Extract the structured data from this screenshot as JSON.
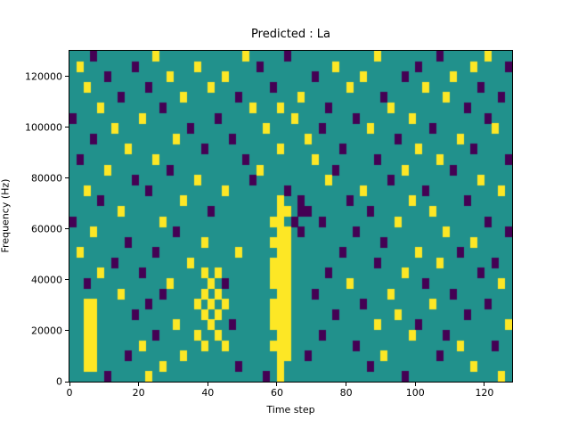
{
  "figure": {
    "background": "#ffffff"
  },
  "chart_data": {
    "type": "heatmap",
    "title": "Predicted : La",
    "xlabel": "Time step",
    "ylabel": "Frequency (Hz)",
    "xlim": [
      0,
      128
    ],
    "ylim": [
      0,
      130000
    ],
    "grid": false,
    "legend": "none",
    "x_ticks": [
      {
        "value": 0,
        "label": "0"
      },
      {
        "value": 20,
        "label": "20"
      },
      {
        "value": 40,
        "label": "40"
      },
      {
        "value": 60,
        "label": "60"
      },
      {
        "value": 80,
        "label": "80"
      },
      {
        "value": 100,
        "label": "100"
      },
      {
        "value": 120,
        "label": "120"
      }
    ],
    "y_ticks": [
      {
        "value": 0,
        "label": "0"
      },
      {
        "value": 20000,
        "label": "20000"
      },
      {
        "value": 40000,
        "label": "40000"
      },
      {
        "value": 60000,
        "label": "60000"
      },
      {
        "value": 80000,
        "label": "80000"
      },
      {
        "value": 100000,
        "label": "100000"
      },
      {
        "value": 120000,
        "label": "120000"
      }
    ],
    "colors": {
      "mid_teal": "#21918c",
      "high_yellow": "#fde725",
      "low_purple": "#440154"
    },
    "cells": {
      "cols": 64,
      "rows": 32,
      "row_order": "top-to-bottom",
      "yellow": [
        [
          12,
          0
        ],
        [
          25,
          0
        ],
        [
          44,
          0
        ],
        [
          60,
          0
        ],
        [
          1,
          1
        ],
        [
          18,
          1
        ],
        [
          38,
          1
        ],
        [
          58,
          1
        ],
        [
          14,
          2
        ],
        [
          22,
          2
        ],
        [
          42,
          2
        ],
        [
          55,
          2
        ],
        [
          2,
          3
        ],
        [
          20,
          3
        ],
        [
          40,
          3
        ],
        [
          51,
          3
        ],
        [
          16,
          4
        ],
        [
          33,
          4
        ],
        [
          54,
          4
        ],
        [
          4,
          5
        ],
        [
          26,
          5
        ],
        [
          30,
          5
        ],
        [
          46,
          5
        ],
        [
          10,
          6
        ],
        [
          32,
          6
        ],
        [
          49,
          6
        ],
        [
          6,
          7
        ],
        [
          28,
          7
        ],
        [
          43,
          7
        ],
        [
          61,
          7
        ],
        [
          15,
          8
        ],
        [
          34,
          8
        ],
        [
          56,
          8
        ],
        [
          8,
          9
        ],
        [
          30,
          9
        ],
        [
          50,
          9
        ],
        [
          12,
          10
        ],
        [
          35,
          10
        ],
        [
          53,
          10
        ],
        [
          5,
          11
        ],
        [
          27,
          11
        ],
        [
          48,
          11
        ],
        [
          18,
          12
        ],
        [
          37,
          12
        ],
        [
          59,
          12
        ],
        [
          2,
          13
        ],
        [
          22,
          13
        ],
        [
          42,
          13
        ],
        [
          62,
          13
        ],
        [
          16,
          14
        ],
        [
          30,
          14
        ],
        [
          49,
          14
        ],
        [
          7,
          15
        ],
        [
          30,
          15
        ],
        [
          31,
          15
        ],
        [
          52,
          15
        ],
        [
          13,
          16
        ],
        [
          29,
          16
        ],
        [
          30,
          16
        ],
        [
          47,
          16
        ],
        [
          3,
          17
        ],
        [
          30,
          17
        ],
        [
          31,
          17
        ],
        [
          54,
          17
        ],
        [
          19,
          18
        ],
        [
          29,
          18
        ],
        [
          30,
          18
        ],
        [
          31,
          18
        ],
        [
          58,
          18
        ],
        [
          1,
          19
        ],
        [
          24,
          19
        ],
        [
          30,
          19
        ],
        [
          31,
          19
        ],
        [
          50,
          19
        ],
        [
          17,
          20
        ],
        [
          29,
          20
        ],
        [
          30,
          20
        ],
        [
          31,
          20
        ],
        [
          53,
          20
        ],
        [
          4,
          21
        ],
        [
          19,
          21
        ],
        [
          21,
          21
        ],
        [
          29,
          21
        ],
        [
          30,
          21
        ],
        [
          31,
          21
        ],
        [
          48,
          21
        ],
        [
          14,
          22
        ],
        [
          20,
          22
        ],
        [
          29,
          22
        ],
        [
          30,
          22
        ],
        [
          31,
          22
        ],
        [
          40,
          22
        ],
        [
          62,
          22
        ],
        [
          7,
          23
        ],
        [
          19,
          23
        ],
        [
          21,
          23
        ],
        [
          30,
          23
        ],
        [
          31,
          23
        ],
        [
          46,
          23
        ],
        [
          2,
          24
        ],
        [
          3,
          24
        ],
        [
          18,
          24
        ],
        [
          20,
          24
        ],
        [
          22,
          24
        ],
        [
          29,
          24
        ],
        [
          30,
          24
        ],
        [
          31,
          24
        ],
        [
          52,
          24
        ],
        [
          2,
          25
        ],
        [
          3,
          25
        ],
        [
          19,
          25
        ],
        [
          21,
          25
        ],
        [
          29,
          25
        ],
        [
          30,
          25
        ],
        [
          31,
          25
        ],
        [
          47,
          25
        ],
        [
          2,
          26
        ],
        [
          3,
          26
        ],
        [
          15,
          26
        ],
        [
          20,
          26
        ],
        [
          29,
          26
        ],
        [
          30,
          26
        ],
        [
          31,
          26
        ],
        [
          44,
          26
        ],
        [
          63,
          26
        ],
        [
          2,
          27
        ],
        [
          3,
          27
        ],
        [
          18,
          27
        ],
        [
          21,
          27
        ],
        [
          30,
          27
        ],
        [
          31,
          27
        ],
        [
          49,
          27
        ],
        [
          2,
          28
        ],
        [
          3,
          28
        ],
        [
          10,
          28
        ],
        [
          19,
          28
        ],
        [
          22,
          28
        ],
        [
          29,
          28
        ],
        [
          30,
          28
        ],
        [
          31,
          28
        ],
        [
          56,
          28
        ],
        [
          2,
          29
        ],
        [
          3,
          29
        ],
        [
          16,
          29
        ],
        [
          30,
          29
        ],
        [
          31,
          29
        ],
        [
          45,
          29
        ],
        [
          2,
          30
        ],
        [
          3,
          30
        ],
        [
          13,
          30
        ],
        [
          30,
          30
        ],
        [
          58,
          30
        ],
        [
          11,
          31
        ],
        [
          30,
          31
        ],
        [
          62,
          31
        ]
      ],
      "purple": [
        [
          3,
          0
        ],
        [
          31,
          0
        ],
        [
          53,
          0
        ],
        [
          9,
          1
        ],
        [
          27,
          1
        ],
        [
          50,
          1
        ],
        [
          63,
          1
        ],
        [
          5,
          2
        ],
        [
          35,
          2
        ],
        [
          48,
          2
        ],
        [
          11,
          3
        ],
        [
          29,
          3
        ],
        [
          59,
          3
        ],
        [
          7,
          4
        ],
        [
          24,
          4
        ],
        [
          45,
          4
        ],
        [
          62,
          4
        ],
        [
          13,
          5
        ],
        [
          37,
          5
        ],
        [
          57,
          5
        ],
        [
          0,
          6
        ],
        [
          21,
          6
        ],
        [
          41,
          6
        ],
        [
          60,
          6
        ],
        [
          17,
          7
        ],
        [
          36,
          7
        ],
        [
          52,
          7
        ],
        [
          3,
          8
        ],
        [
          23,
          8
        ],
        [
          47,
          8
        ],
        [
          19,
          9
        ],
        [
          39,
          9
        ],
        [
          58,
          9
        ],
        [
          1,
          10
        ],
        [
          25,
          10
        ],
        [
          44,
          10
        ],
        [
          63,
          10
        ],
        [
          14,
          11
        ],
        [
          38,
          11
        ],
        [
          55,
          11
        ],
        [
          9,
          12
        ],
        [
          26,
          12
        ],
        [
          46,
          12
        ],
        [
          11,
          13
        ],
        [
          31,
          13
        ],
        [
          51,
          13
        ],
        [
          4,
          14
        ],
        [
          33,
          14
        ],
        [
          40,
          14
        ],
        [
          57,
          14
        ],
        [
          20,
          15
        ],
        [
          33,
          15
        ],
        [
          34,
          15
        ],
        [
          43,
          15
        ],
        [
          0,
          16
        ],
        [
          32,
          16
        ],
        [
          36,
          16
        ],
        [
          60,
          16
        ],
        [
          15,
          17
        ],
        [
          33,
          17
        ],
        [
          41,
          17
        ],
        [
          63,
          17
        ],
        [
          8,
          18
        ],
        [
          45,
          18
        ],
        [
          12,
          19
        ],
        [
          39,
          19
        ],
        [
          56,
          19
        ],
        [
          6,
          20
        ],
        [
          44,
          20
        ],
        [
          61,
          20
        ],
        [
          10,
          21
        ],
        [
          37,
          21
        ],
        [
          59,
          21
        ],
        [
          2,
          22
        ],
        [
          22,
          22
        ],
        [
          51,
          22
        ],
        [
          13,
          23
        ],
        [
          35,
          23
        ],
        [
          55,
          23
        ],
        [
          11,
          24
        ],
        [
          42,
          24
        ],
        [
          60,
          24
        ],
        [
          9,
          25
        ],
        [
          38,
          25
        ],
        [
          57,
          25
        ],
        [
          23,
          26
        ],
        [
          50,
          26
        ],
        [
          12,
          27
        ],
        [
          36,
          27
        ],
        [
          54,
          27
        ],
        [
          41,
          28
        ],
        [
          61,
          28
        ],
        [
          8,
          29
        ],
        [
          34,
          29
        ],
        [
          53,
          29
        ],
        [
          24,
          30
        ],
        [
          43,
          30
        ],
        [
          5,
          31
        ],
        [
          28,
          31
        ],
        [
          48,
          31
        ]
      ]
    }
  }
}
